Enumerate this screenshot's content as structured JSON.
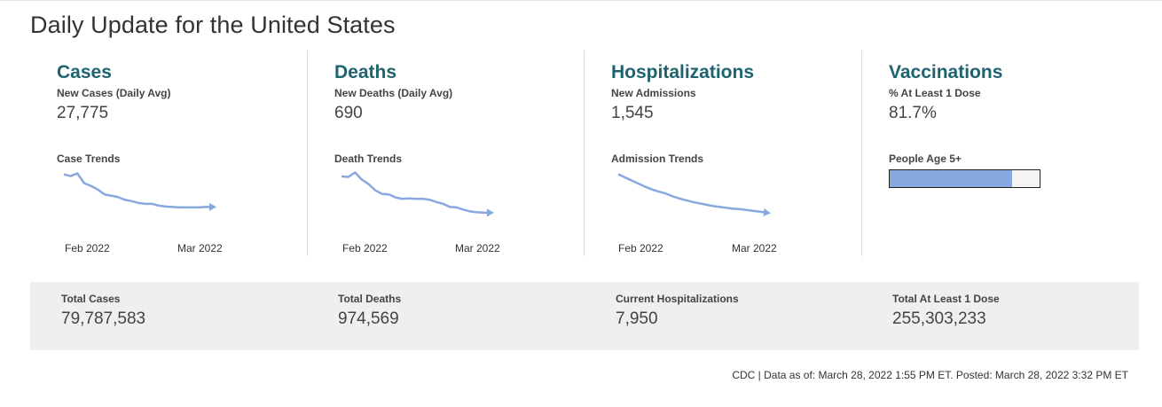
{
  "page": {
    "title": "Daily Update for the United States"
  },
  "sections": [
    {
      "title": "Cases",
      "metric_label": "New Cases (Daily Avg)",
      "metric_value": "27,775",
      "trend_label": "Case Trends",
      "ticks": [
        "Feb 2022",
        "Mar 2022"
      ],
      "trend_values": [
        100,
        96,
        102,
        80,
        74,
        66,
        55,
        52,
        49,
        43,
        40,
        36,
        34,
        34,
        30,
        28,
        27,
        26,
        26,
        26,
        26,
        27,
        27
      ]
    },
    {
      "title": "Deaths",
      "metric_label": "New Deaths (Daily Avg)",
      "metric_value": "690",
      "trend_label": "Death Trends",
      "ticks": [
        "Feb 2022",
        "Mar 2022"
      ],
      "trend_values": [
        95,
        94,
        104,
        88,
        78,
        64,
        56,
        55,
        48,
        45,
        46,
        45,
        45,
        43,
        38,
        34,
        27,
        26,
        21,
        17,
        15,
        14,
        14
      ]
    },
    {
      "title": "Hospitalizations",
      "metric_label": "New Admissions",
      "metric_value": "1,545",
      "trend_label": "Admission Trends",
      "ticks": [
        "Feb 2022",
        "Mar 2022"
      ],
      "trend_values": [
        100,
        93,
        86,
        79,
        72,
        66,
        61,
        57,
        51,
        46,
        42,
        38,
        35,
        32,
        29,
        27,
        25,
        23,
        22,
        20,
        18,
        16,
        14
      ]
    },
    {
      "title": "Vaccinations",
      "metric_label": "% At Least 1 Dose",
      "metric_value": "81.7%",
      "trend_label": "People Age 5+",
      "bar_fraction": 0.817
    }
  ],
  "totals": [
    {
      "label": "Total Cases",
      "value": "79,787,583"
    },
    {
      "label": "Total Deaths",
      "value": "974,569"
    },
    {
      "label": "Current Hospitalizations",
      "value": "7,950"
    },
    {
      "label": "Total At Least 1 Dose",
      "value": "255,303,233"
    }
  ],
  "footer": "CDC | Data as of: March 28, 2022 1:55 PM ET. Posted: March 28, 2022 3:32 PM ET",
  "colors": {
    "title_teal": "#1e6470",
    "trend_line": "#88a8e0",
    "totals_bg": "#efefef"
  }
}
